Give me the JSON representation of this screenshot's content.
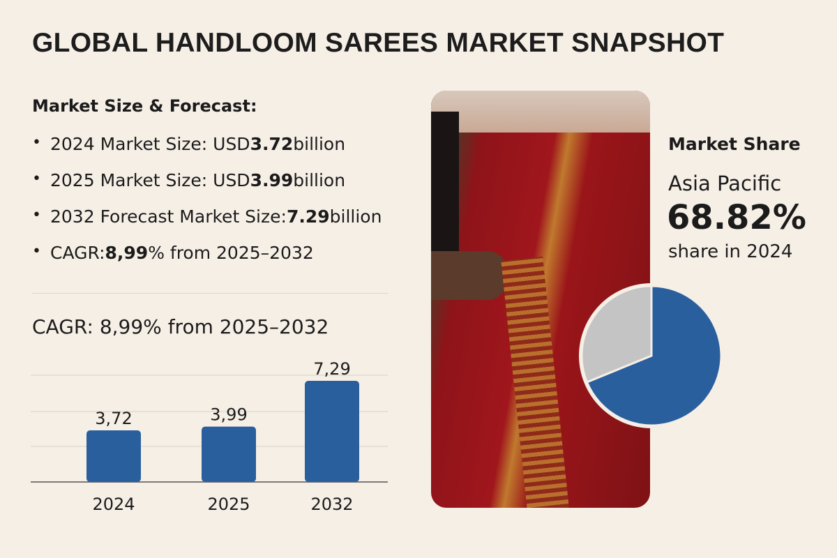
{
  "title": "GLOBAL HANDLOOM SAREES MARKET SNAPSHOT",
  "forecast": {
    "heading": "Market Size & Forecast:",
    "items": [
      {
        "pre": "2024 Market Size: USD ",
        "val": "3.72",
        "post": " billion"
      },
      {
        "pre": "2025 Market Size: USD ",
        "val": "3.99",
        "post": " billion"
      },
      {
        "pre": "2032 Forecast Market Size: ",
        "val": "7.29",
        "post": " billion"
      },
      {
        "pre": "CAGR: ",
        "val": "8,99",
        "post": "% from 2025–2032"
      }
    ]
  },
  "cagr_label": "CAGR: 8,99% from 2025–2032",
  "share": {
    "heading": "Market Share",
    "region": "Asia Pacific",
    "percent": "68.82%",
    "caption": "share in 2024"
  },
  "chart_data": [
    {
      "type": "bar",
      "categories": [
        "2024",
        "2025",
        "2032"
      ],
      "values": [
        3.72,
        3.99,
        7.29
      ],
      "data_labels": [
        "3,72",
        "3,99",
        "7,29"
      ],
      "grid": true,
      "color": "#2a5f9e"
    },
    {
      "type": "pie",
      "slices": [
        {
          "label": "Asia Pacific",
          "value": 68.82,
          "color": "#2a5f9e"
        },
        {
          "label": "Other",
          "value": 31.18,
          "color": "#c4c4c4"
        }
      ]
    }
  ]
}
